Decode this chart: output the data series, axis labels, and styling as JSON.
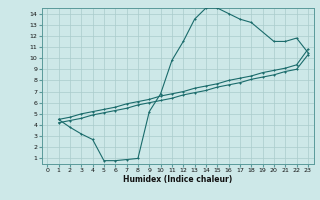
{
  "xlabel": "Humidex (Indice chaleur)",
  "bg_color": "#cde8e8",
  "line_color": "#1a6b6b",
  "grid_color": "#aacccc",
  "xlim": [
    -0.5,
    23.5
  ],
  "ylim": [
    0.5,
    14.5
  ],
  "xticks": [
    0,
    1,
    2,
    3,
    4,
    5,
    6,
    7,
    8,
    9,
    10,
    11,
    12,
    13,
    14,
    15,
    16,
    17,
    18,
    19,
    20,
    21,
    22,
    23
  ],
  "yticks": [
    1,
    2,
    3,
    4,
    5,
    6,
    7,
    8,
    9,
    10,
    11,
    12,
    13,
    14
  ],
  "curve1_x": [
    1,
    2,
    3,
    4,
    5,
    6,
    7,
    8,
    9,
    10,
    11,
    12,
    13,
    14,
    15,
    16,
    17,
    18,
    20,
    21,
    22,
    23
  ],
  "curve1_y": [
    4.5,
    3.8,
    3.2,
    2.7,
    0.8,
    0.8,
    0.9,
    1.0,
    5.2,
    6.8,
    9.8,
    11.5,
    13.5,
    14.5,
    14.5,
    14.0,
    13.5,
    13.2,
    11.5,
    11.5,
    11.8,
    10.5
  ],
  "curve2_x": [
    1,
    2,
    3,
    4,
    5,
    6,
    7,
    8,
    9,
    10,
    11,
    12,
    13,
    14,
    15,
    16,
    17,
    18,
    19,
    20,
    21,
    22,
    23
  ],
  "curve2_y": [
    4.5,
    4.7,
    5.0,
    5.2,
    5.4,
    5.6,
    5.9,
    6.1,
    6.3,
    6.6,
    6.8,
    7.0,
    7.3,
    7.5,
    7.7,
    8.0,
    8.2,
    8.4,
    8.7,
    8.9,
    9.1,
    9.4,
    10.8
  ],
  "curve3_x": [
    1,
    2,
    3,
    4,
    5,
    6,
    7,
    8,
    9,
    10,
    11,
    12,
    13,
    14,
    15,
    16,
    17,
    18,
    19,
    20,
    21,
    22,
    23
  ],
  "curve3_y": [
    4.2,
    4.4,
    4.6,
    4.9,
    5.1,
    5.3,
    5.5,
    5.8,
    6.0,
    6.2,
    6.4,
    6.7,
    6.9,
    7.1,
    7.4,
    7.6,
    7.8,
    8.1,
    8.3,
    8.5,
    8.8,
    9.0,
    10.3
  ]
}
